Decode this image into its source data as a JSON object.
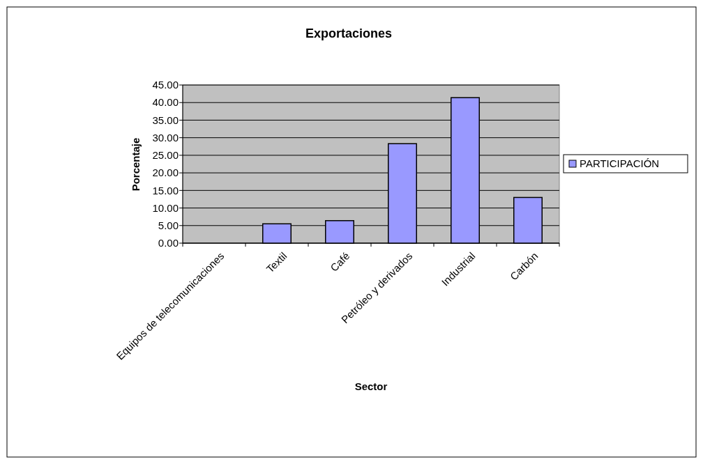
{
  "chart_data": {
    "type": "bar",
    "title": "Exportaciones",
    "xlabel": "Sector",
    "ylabel": "Porcentaje",
    "categories": [
      "Equipos de telecomunicaciones",
      "Textil",
      "Café",
      "Petróleo y derivados",
      "Industrial",
      "Carbón"
    ],
    "series": [
      {
        "name": "PARTICIPACIÓN",
        "color": "#9999ff",
        "values": [
          0,
          5.5,
          6.4,
          28.3,
          41.4,
          13.0
        ]
      }
    ],
    "ylim": [
      0,
      45
    ],
    "yticks": [
      {
        "value": 0,
        "label": "0.00"
      },
      {
        "value": 5,
        "label": "5.00"
      },
      {
        "value": 10,
        "label": "10.00"
      },
      {
        "value": 15,
        "label": "15.00"
      },
      {
        "value": 20,
        "label": "20.00"
      },
      {
        "value": 25,
        "label": "25.00"
      },
      {
        "value": 30,
        "label": "30.00"
      },
      {
        "value": 35,
        "label": "35.00"
      },
      {
        "value": 40,
        "label": "40.00"
      },
      {
        "value": 45,
        "label": "45.00"
      }
    ],
    "grid": "y",
    "legend": "right"
  }
}
